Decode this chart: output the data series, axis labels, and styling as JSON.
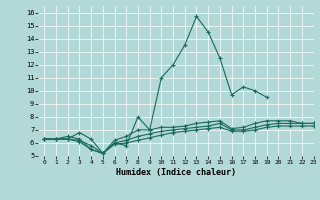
{
  "title": "",
  "xlabel": "Humidex (Indice chaleur)",
  "background_color": "#b2d8d8",
  "line_color": "#1a6b5a",
  "xlim": [
    -0.5,
    23
  ],
  "ylim": [
    5,
    16.5
  ],
  "yticks": [
    5,
    6,
    7,
    8,
    9,
    10,
    11,
    12,
    13,
    14,
    15,
    16
  ],
  "xticks": [
    0,
    1,
    2,
    3,
    4,
    5,
    6,
    7,
    8,
    9,
    10,
    11,
    12,
    13,
    14,
    15,
    16,
    17,
    18,
    19,
    20,
    21,
    22,
    23
  ],
  "series": [
    [
      6.3,
      6.3,
      6.3,
      6.8,
      6.3,
      5.2,
      6.0,
      5.8,
      8.0,
      7.0,
      11.0,
      12.0,
      13.5,
      15.7,
      14.5,
      12.5,
      9.7,
      10.3,
      10.0,
      9.5,
      null,
      null,
      null,
      null
    ],
    [
      6.3,
      6.3,
      6.3,
      6.2,
      5.8,
      5.2,
      6.2,
      6.5,
      7.0,
      7.0,
      7.2,
      7.2,
      7.3,
      7.5,
      7.6,
      7.7,
      7.1,
      7.2,
      7.5,
      7.7,
      7.7,
      7.7,
      7.5,
      7.5
    ],
    [
      6.3,
      6.3,
      6.5,
      6.3,
      5.5,
      5.2,
      6.0,
      6.2,
      6.5,
      6.7,
      6.9,
      7.0,
      7.1,
      7.2,
      7.3,
      7.5,
      7.0,
      7.0,
      7.2,
      7.4,
      7.5,
      7.5,
      7.5,
      7.5
    ],
    [
      6.3,
      6.3,
      6.3,
      6.1,
      5.5,
      5.2,
      5.9,
      6.0,
      6.2,
      6.4,
      6.6,
      6.8,
      6.9,
      7.0,
      7.1,
      7.2,
      6.9,
      6.9,
      7.0,
      7.2,
      7.3,
      7.3,
      7.3,
      7.3
    ]
  ]
}
